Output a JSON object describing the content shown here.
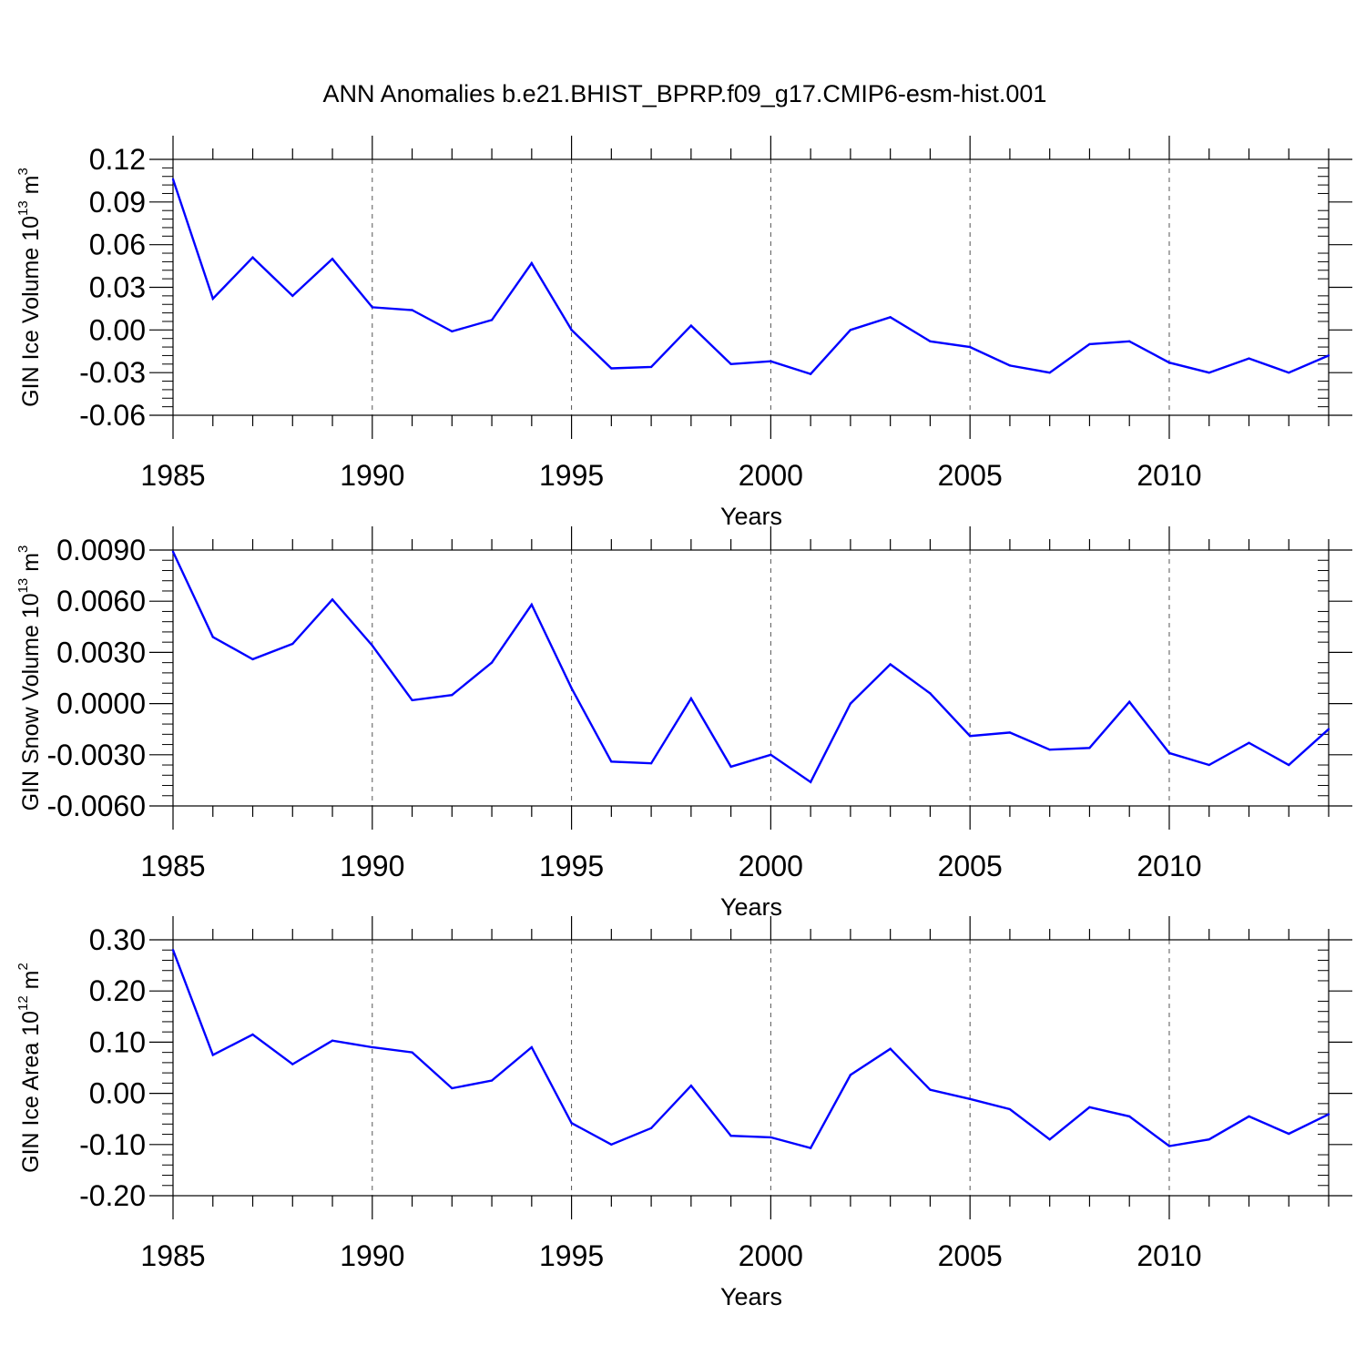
{
  "title": "ANN Anomalies b.e21.BHIST_BPRP.f09_g17.CMIP6-esm-hist.001",
  "colors": {
    "line": "#0000ff",
    "axes": "#000000",
    "grid": "#555555"
  },
  "chart_data": [
    {
      "type": "line",
      "ylabel": {
        "text": "GIN Ice Volume 10",
        "sup": "13",
        "unit": " m",
        "unit_sup": "3"
      },
      "xlabel": "Years",
      "xlim": [
        1985,
        2014
      ],
      "ylim": [
        -0.06,
        0.12
      ],
      "yticks": [
        0.12,
        0.09,
        0.06,
        0.03,
        0.0,
        -0.03,
        -0.06
      ],
      "ytick_labels": [
        "0.12",
        "0.09",
        "0.06",
        "0.03",
        "0.00",
        "-0.03",
        "-0.06"
      ],
      "xticks": [
        1985,
        1990,
        1995,
        2000,
        2005,
        2010
      ],
      "xtick_labels": [
        "1985",
        "1990",
        "1995",
        "2000",
        "2005",
        "2010"
      ],
      "grid": "vertical dashed at major x ticks",
      "x": [
        1985,
        1986,
        1987,
        1988,
        1989,
        1990,
        1991,
        1992,
        1993,
        1994,
        1995,
        1996,
        1997,
        1998,
        1999,
        2000,
        2001,
        2002,
        2003,
        2004,
        2005,
        2006,
        2007,
        2008,
        2009,
        2010,
        2011,
        2012,
        2013,
        2014
      ],
      "values": [
        0.106,
        0.022,
        0.051,
        0.024,
        0.05,
        0.016,
        0.014,
        -0.001,
        0.007,
        0.047,
        0.0,
        -0.027,
        -0.026,
        0.003,
        -0.024,
        -0.022,
        -0.031,
        0.0,
        0.009,
        -0.008,
        -0.012,
        -0.025,
        -0.03,
        -0.01,
        -0.008,
        -0.023,
        -0.03,
        -0.02,
        -0.03,
        -0.018
      ]
    },
    {
      "type": "line",
      "ylabel": {
        "text": "GIN Snow Volume 10",
        "sup": "13",
        "unit": " m",
        "unit_sup": "3"
      },
      "xlabel": "Years",
      "xlim": [
        1985,
        2014
      ],
      "ylim": [
        -0.006,
        0.009
      ],
      "yticks": [
        0.009,
        0.006,
        0.003,
        0.0,
        -0.003,
        -0.006
      ],
      "ytick_labels": [
        "0.0090",
        "0.0060",
        "0.0030",
        "0.0000",
        "-0.0030",
        "-0.0060"
      ],
      "xticks": [
        1985,
        1990,
        1995,
        2000,
        2005,
        2010
      ],
      "xtick_labels": [
        "1985",
        "1990",
        "1995",
        "2000",
        "2005",
        "2010"
      ],
      "grid": "vertical dashed at major x ticks",
      "x": [
        1985,
        1986,
        1987,
        1988,
        1989,
        1990,
        1991,
        1992,
        1993,
        1994,
        1995,
        1996,
        1997,
        1998,
        1999,
        2000,
        2001,
        2002,
        2003,
        2004,
        2005,
        2006,
        2007,
        2008,
        2009,
        2010,
        2011,
        2012,
        2013,
        2014
      ],
      "values": [
        0.0089,
        0.0039,
        0.0026,
        0.0035,
        0.0061,
        0.0034,
        0.0002,
        0.0005,
        0.0024,
        0.0058,
        0.0009,
        -0.0034,
        -0.0035,
        0.0003,
        -0.0037,
        -0.003,
        -0.0046,
        -0.0,
        0.0023,
        0.0006,
        -0.0019,
        -0.0017,
        -0.0027,
        -0.0026,
        0.0001,
        -0.0029,
        -0.0036,
        -0.0023,
        -0.0036,
        -0.0015
      ]
    },
    {
      "type": "line",
      "ylabel": {
        "text": "GIN Ice Area 10",
        "sup": "12",
        "unit": " m",
        "unit_sup": "2"
      },
      "xlabel": "Years",
      "xlim": [
        1985,
        2014
      ],
      "ylim": [
        -0.2,
        0.3
      ],
      "yticks": [
        0.3,
        0.2,
        0.1,
        0.0,
        -0.1,
        -0.2
      ],
      "ytick_labels": [
        "0.30",
        "0.20",
        "0.10",
        "0.00",
        "-0.10",
        "-0.20"
      ],
      "xticks": [
        1985,
        1990,
        1995,
        2000,
        2005,
        2010
      ],
      "xtick_labels": [
        "1985",
        "1990",
        "1995",
        "2000",
        "2005",
        "2010"
      ],
      "grid": "vertical dashed at major x ticks",
      "x": [
        1985,
        1986,
        1987,
        1988,
        1989,
        1990,
        1991,
        1992,
        1993,
        1994,
        1995,
        1996,
        1997,
        1998,
        1999,
        2000,
        2001,
        2002,
        2003,
        2004,
        2005,
        2006,
        2007,
        2008,
        2009,
        2010,
        2011,
        2012,
        2013,
        2014
      ],
      "values": [
        0.28,
        0.075,
        0.115,
        0.057,
        0.103,
        0.09,
        0.08,
        0.01,
        0.025,
        0.09,
        -0.058,
        -0.1,
        -0.068,
        0.015,
        -0.083,
        -0.086,
        -0.107,
        0.036,
        0.087,
        0.007,
        -0.011,
        -0.031,
        -0.09,
        -0.027,
        -0.045,
        -0.103,
        -0.09,
        -0.045,
        -0.079,
        -0.041
      ]
    }
  ]
}
